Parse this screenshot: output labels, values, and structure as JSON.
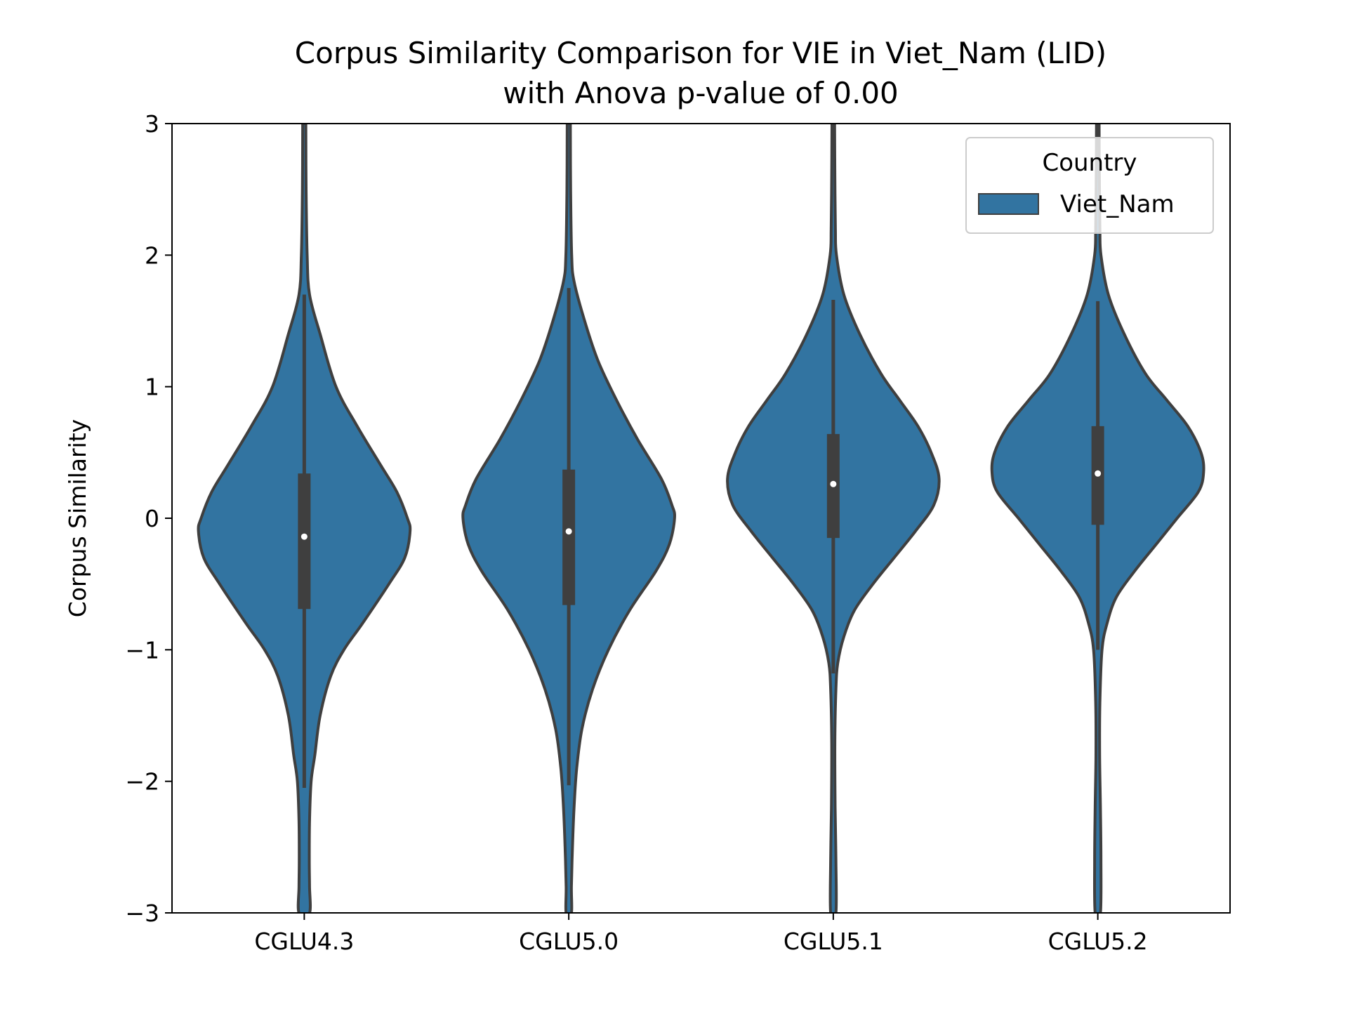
{
  "chart_data": {
    "type": "violin",
    "title": "Corpus Similarity Comparison for VIE in Viet_Nam (LID)\nwith Anova p-value of 0.00",
    "title_lines": [
      "Corpus Similarity Comparison for VIE in Viet_Nam (LID)",
      "with Anova p-value of 0.00"
    ],
    "xlabel": "",
    "ylabel": "Corpus Similarity",
    "ylim": [
      -3,
      3
    ],
    "yticks": [
      3,
      2,
      1,
      0,
      -1,
      -2,
      -3
    ],
    "ytick_labels": [
      "3",
      "2",
      "1",
      "0",
      "−1",
      "−2",
      "−3"
    ],
    "categories": [
      "CGLU4.3",
      "CGLU5.0",
      "CGLU5.1",
      "CGLU5.2"
    ],
    "grid": false,
    "legend": {
      "title": "Country",
      "position": "top-right",
      "entries": [
        {
          "label": "Viet_Nam",
          "color": "#3274a1"
        }
      ]
    },
    "colors": {
      "fill": "#3274a1",
      "edge": "#3f3f3f",
      "median": "#ffffff"
    },
    "series": [
      {
        "name": "Viet_Nam",
        "violins": [
          {
            "category": "CGLU4.3",
            "median": -0.14,
            "q1": -0.69,
            "q3": 0.34,
            "whisker_low": -2.05,
            "whisker_high": 1.7,
            "profile": [
              [
                3.0,
                0.006
              ],
              [
                2.5,
                0.007
              ],
              [
                2.0,
                0.011
              ],
              [
                1.7,
                0.02
              ],
              [
                1.4,
                0.06
              ],
              [
                1.0,
                0.12
              ],
              [
                0.7,
                0.2
              ],
              [
                0.4,
                0.29
              ],
              [
                0.2,
                0.35
              ],
              [
                0.0,
                0.39
              ],
              [
                -0.1,
                0.4
              ],
              [
                -0.3,
                0.38
              ],
              [
                -0.5,
                0.32
              ],
              [
                -0.8,
                0.22
              ],
              [
                -1.0,
                0.15
              ],
              [
                -1.2,
                0.1
              ],
              [
                -1.5,
                0.06
              ],
              [
                -1.8,
                0.04
              ],
              [
                -2.0,
                0.026
              ],
              [
                -2.3,
                0.02
              ],
              [
                -2.6,
                0.019
              ],
              [
                -2.8,
                0.02
              ],
              [
                -3.0,
                0.02
              ]
            ]
          },
          {
            "category": "CGLU5.0",
            "median": -0.1,
            "q1": -0.66,
            "q3": 0.37,
            "whisker_low": -2.03,
            "whisker_high": 1.75,
            "profile": [
              [
                3.0,
                0.006
              ],
              [
                2.5,
                0.007
              ],
              [
                2.0,
                0.011
              ],
              [
                1.8,
                0.02
              ],
              [
                1.5,
                0.06
              ],
              [
                1.2,
                0.11
              ],
              [
                0.9,
                0.18
              ],
              [
                0.6,
                0.26
              ],
              [
                0.3,
                0.35
              ],
              [
                0.1,
                0.39
              ],
              [
                0.0,
                0.4
              ],
              [
                -0.2,
                0.38
              ],
              [
                -0.4,
                0.33
              ],
              [
                -0.7,
                0.23
              ],
              [
                -1.0,
                0.15
              ],
              [
                -1.3,
                0.09
              ],
              [
                -1.6,
                0.05
              ],
              [
                -1.9,
                0.03
              ],
              [
                -2.2,
                0.02
              ],
              [
                -2.5,
                0.014
              ],
              [
                -2.8,
                0.01
              ],
              [
                -3.0,
                0.01
              ]
            ]
          },
          {
            "category": "CGLU5.1",
            "median": 0.26,
            "q1": -0.15,
            "q3": 0.64,
            "whisker_low": -1.18,
            "whisker_high": 1.66,
            "profile": [
              [
                3.0,
                0.005
              ],
              [
                2.6,
                0.006
              ],
              [
                2.2,
                0.008
              ],
              [
                2.0,
                0.012
              ],
              [
                1.7,
                0.04
              ],
              [
                1.4,
                0.1
              ],
              [
                1.1,
                0.18
              ],
              [
                0.9,
                0.25
              ],
              [
                0.7,
                0.32
              ],
              [
                0.5,
                0.37
              ],
              [
                0.3,
                0.4
              ],
              [
                0.1,
                0.38
              ],
              [
                -0.1,
                0.31
              ],
              [
                -0.3,
                0.23
              ],
              [
                -0.5,
                0.15
              ],
              [
                -0.7,
                0.08
              ],
              [
                -0.9,
                0.04
              ],
              [
                -1.1,
                0.017
              ],
              [
                -1.3,
                0.01
              ],
              [
                -1.7,
                0.006
              ],
              [
                -2.2,
                0.007
              ],
              [
                -2.6,
                0.01
              ],
              [
                -3.0,
                0.01
              ]
            ]
          },
          {
            "category": "CGLU5.2",
            "median": 0.34,
            "q1": -0.05,
            "q3": 0.7,
            "whisker_low": -1.0,
            "whisker_high": 1.65,
            "profile": [
              [
                3.0,
                0.005
              ],
              [
                2.6,
                0.006
              ],
              [
                2.2,
                0.008
              ],
              [
                2.0,
                0.012
              ],
              [
                1.7,
                0.04
              ],
              [
                1.4,
                0.1
              ],
              [
                1.1,
                0.18
              ],
              [
                0.9,
                0.26
              ],
              [
                0.7,
                0.34
              ],
              [
                0.5,
                0.39
              ],
              [
                0.35,
                0.4
              ],
              [
                0.2,
                0.38
              ],
              [
                0.0,
                0.3
              ],
              [
                -0.2,
                0.22
              ],
              [
                -0.4,
                0.14
              ],
              [
                -0.6,
                0.07
              ],
              [
                -0.8,
                0.035
              ],
              [
                -1.0,
                0.016
              ],
              [
                -1.4,
                0.008
              ],
              [
                -1.8,
                0.007
              ],
              [
                -2.2,
                0.01
              ],
              [
                -2.6,
                0.012
              ],
              [
                -3.0,
                0.01
              ]
            ]
          }
        ]
      }
    ]
  }
}
